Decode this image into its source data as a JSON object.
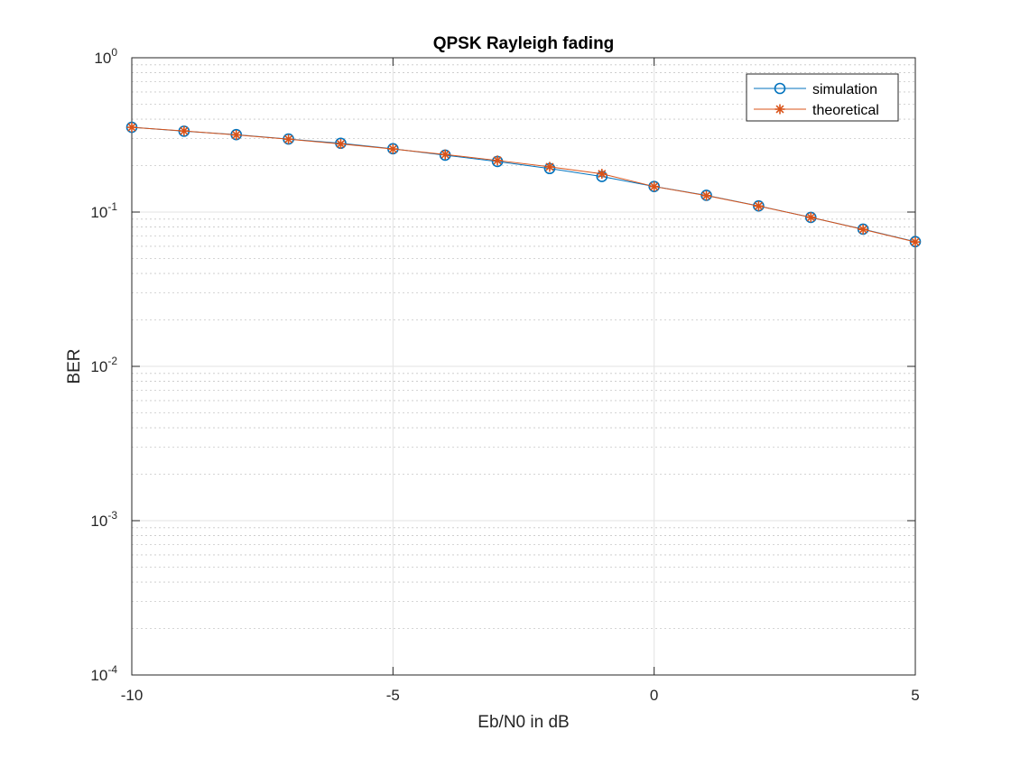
{
  "chart_data": {
    "type": "line",
    "title": "QPSK Rayleigh fading",
    "xlabel": "Eb/N0 in dB",
    "ylabel": "BER",
    "xlim": [
      -10,
      5
    ],
    "ylim": [
      0.0001,
      1
    ],
    "yscale": "log",
    "grid": true,
    "minor_grid": true,
    "legend_position": "top-right",
    "x_ticks": [
      -10,
      -5,
      0,
      5
    ],
    "x_tick_labels": [
      "-10",
      "-5",
      "0",
      "5"
    ],
    "y_ticks": [
      {
        "value": 1,
        "base": "10",
        "exp": "0"
      },
      {
        "value": 0.1,
        "base": "10",
        "exp": "-1"
      },
      {
        "value": 0.01,
        "base": "10",
        "exp": "-2"
      },
      {
        "value": 0.001,
        "base": "10",
        "exp": "-3"
      },
      {
        "value": 0.0001,
        "base": "10",
        "exp": "-4"
      }
    ],
    "x": [
      -10,
      -9,
      -8,
      -7,
      -6,
      -5,
      -4,
      -3,
      -2,
      -1,
      0,
      1,
      2,
      3,
      4,
      5
    ],
    "series": [
      {
        "name": "simulation",
        "marker": "circle",
        "color": "#0072BD",
        "values": [
          0.3545,
          0.3343,
          0.3174,
          0.2973,
          0.2792,
          0.2572,
          0.2337,
          0.2127,
          0.1915,
          0.17,
          0.1465,
          0.1284,
          0.1096,
          0.0923,
          0.0775,
          0.0643
        ]
      },
      {
        "name": "theoretical",
        "marker": "star",
        "color": "#D95319",
        "values": [
          0.3542,
          0.3355,
          0.3162,
          0.2965,
          0.2765,
          0.2563,
          0.2361,
          0.216,
          0.1963,
          0.177,
          0.1464,
          0.1278,
          0.1094,
          0.0924,
          0.0772,
          0.064
        ]
      }
    ]
  }
}
